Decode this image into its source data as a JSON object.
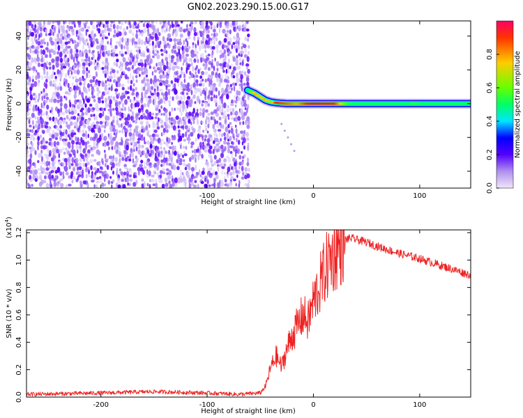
{
  "title": "GN02.2023.290.15.00.G17",
  "chart_data": [
    {
      "type": "heatmap",
      "xlabel": "Height of straight line (km)",
      "ylabel": "Frequency (Hz)",
      "xlim": [
        -270,
        148
      ],
      "ylim": [
        -50,
        49
      ],
      "xticks": [
        -200,
        -100,
        0,
        100
      ],
      "yticks": [
        -40,
        -20,
        0,
        20,
        40
      ],
      "grid": false,
      "colorbar": {
        "label": "Normalized spectral amplitude",
        "range": [
          0.0,
          1.0
        ],
        "ticks": [
          "0.0",
          "0.2",
          "0.4",
          "0.6",
          "0.8"
        ],
        "colormap": [
          "#f0e6fa",
          "#b090ee",
          "#5500ff",
          "#0000ff",
          "#00e5ff",
          "#00ff66",
          "#66ff00",
          "#ffcc00",
          "#ff3300",
          "#ff0066"
        ]
      },
      "noise_region_x": [
        -270,
        -62
      ],
      "signal_track": [
        {
          "x": -62,
          "y": 8,
          "amp": 0.55
        },
        {
          "x": -55,
          "y": 6,
          "amp": 0.8
        },
        {
          "x": -50,
          "y": 4,
          "amp": 0.75
        },
        {
          "x": -45,
          "y": 2,
          "amp": 0.8
        },
        {
          "x": -40,
          "y": 1,
          "amp": 0.7
        },
        {
          "x": -35,
          "y": 0.5,
          "amp": 0.9
        },
        {
          "x": -25,
          "y": 0,
          "amp": 0.85
        },
        {
          "x": -15,
          "y": 0,
          "amp": 0.8
        },
        {
          "x": 0,
          "y": 0,
          "amp": 0.95
        },
        {
          "x": 20,
          "y": 0,
          "amp": 0.9
        },
        {
          "x": 40,
          "y": 0,
          "amp": 0.45
        },
        {
          "x": 70,
          "y": 0,
          "amp": 0.45
        },
        {
          "x": 95,
          "y": 0,
          "amp": 0.6
        },
        {
          "x": 120,
          "y": 0,
          "amp": 0.45
        },
        {
          "x": 140,
          "y": 0,
          "amp": 0.55
        }
      ]
    },
    {
      "type": "line",
      "xlabel": "Height of straight line (km)",
      "ylabel": "SNR (10 * v/v)",
      "y_multiplier": "(x10",
      "y_exponent": "4",
      "y_multiplier_close": ")",
      "xlim": [
        -270,
        148
      ],
      "ylim": [
        0,
        1.22
      ],
      "xticks": [
        -200,
        -100,
        0,
        100
      ],
      "yticks": [
        "0.0",
        "0.2",
        "0.4",
        "0.6",
        "0.8",
        "1.0",
        "1.2"
      ],
      "grid": false,
      "series": [
        {
          "color": "#ee2222",
          "x": [
            -270,
            -200,
            -150,
            -100,
            -70,
            -50,
            -45,
            -40,
            -35,
            -30,
            -25,
            -20,
            -15,
            -10,
            -5,
            0,
            5,
            10,
            15,
            20,
            25,
            30,
            35,
            40,
            50,
            60,
            80,
            100,
            120,
            148
          ],
          "values": [
            0.02,
            0.03,
            0.04,
            0.03,
            0.02,
            0.03,
            0.08,
            0.22,
            0.3,
            0.22,
            0.35,
            0.45,
            0.52,
            0.6,
            0.55,
            0.7,
            0.8,
            0.9,
            1.0,
            1.05,
            1.1,
            1.15,
            1.16,
            1.15,
            1.13,
            1.1,
            1.05,
            1.01,
            0.96,
            0.89
          ]
        }
      ]
    }
  ]
}
